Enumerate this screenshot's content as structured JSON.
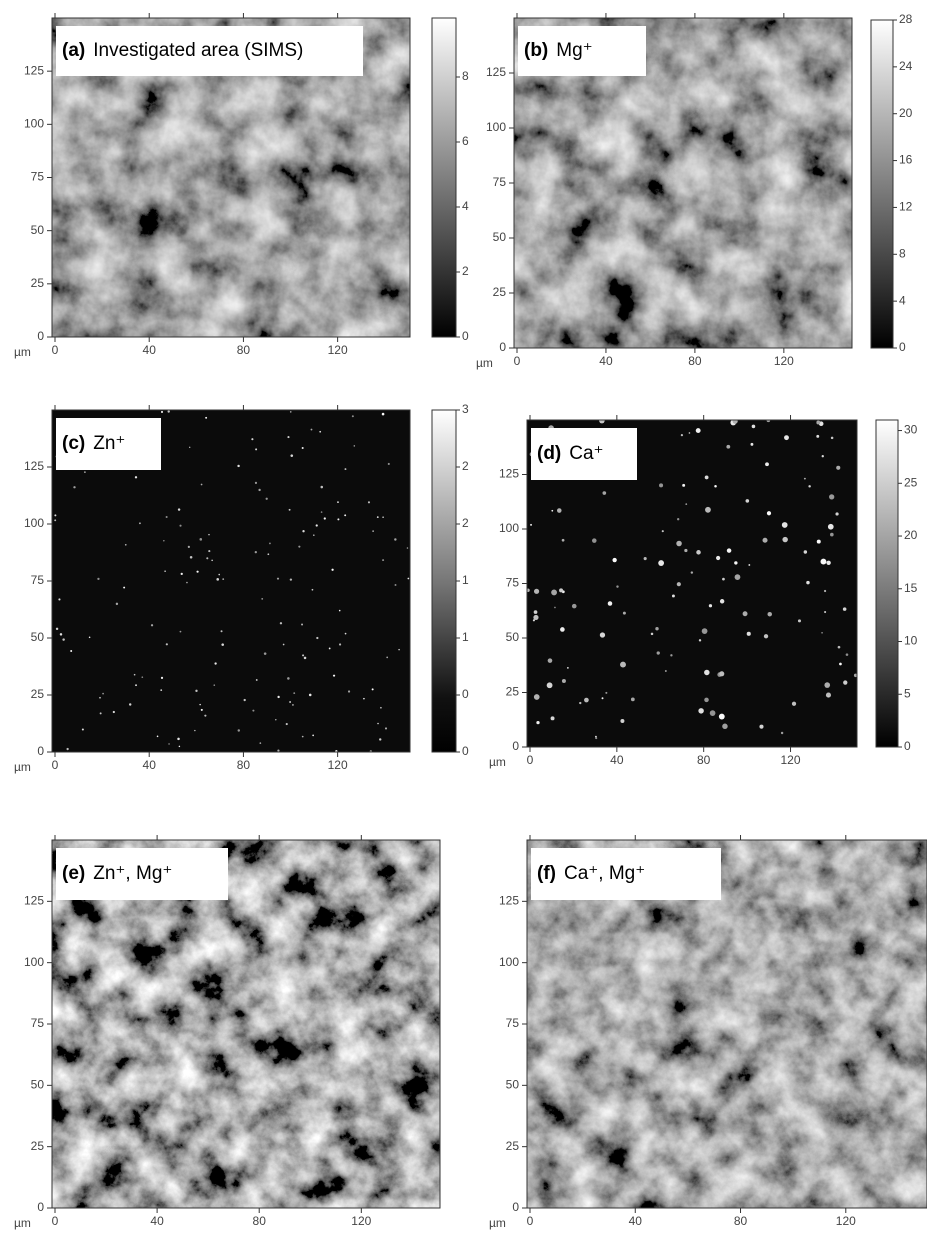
{
  "figure": {
    "axes": {
      "unit": "µm",
      "xlim": [
        0,
        152
      ],
      "ylim": [
        0,
        150
      ],
      "xticks": [
        0,
        40,
        80,
        120
      ],
      "yticks": [
        0,
        25,
        50,
        75,
        100,
        125
      ]
    },
    "panels": [
      {
        "label": "(a)",
        "title": "Investigated area (SIMS)",
        "colorbar": {
          "labels": [
            "8",
            "6",
            "4",
            "2",
            "0"
          ]
        }
      },
      {
        "label": "(b)",
        "title": "Mg⁺",
        "colorbar": {
          "lim": [
            0,
            28
          ],
          "ticks": [
            0,
            4,
            8,
            12,
            16,
            20,
            24,
            28
          ]
        }
      },
      {
        "label": "(c)",
        "title": "Zn⁺",
        "colorbar": {
          "labels": [
            "3",
            "2",
            "2",
            "1",
            "1",
            "0",
            "0"
          ]
        }
      },
      {
        "label": "(d)",
        "title": "Ca⁺",
        "colorbar": {
          "lim": [
            0,
            31
          ],
          "ticks": [
            0,
            5,
            10,
            15,
            20,
            25,
            30
          ]
        }
      },
      {
        "label": "(e)",
        "title": "Zn⁺, Mg⁺"
      },
      {
        "label": "(f)",
        "title": "Ca⁺, Mg⁺"
      }
    ]
  }
}
